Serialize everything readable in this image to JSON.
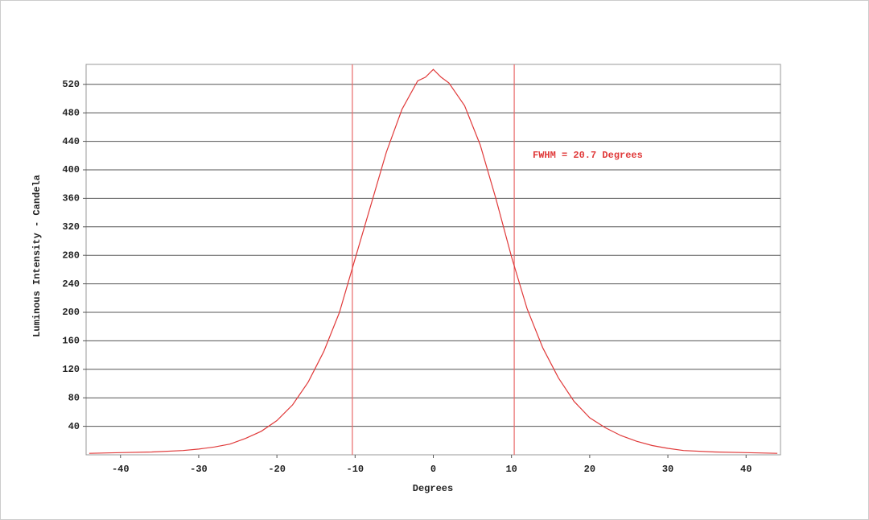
{
  "chart_data": {
    "type": "line",
    "x_label": "Degrees",
    "y_label": "Luminous Intensity - Candela",
    "annotation": "FWHM = 20.7 Degrees",
    "x": [
      -44,
      -40,
      -36,
      -32,
      -30,
      -28,
      -26,
      -24,
      -22,
      -20,
      -18,
      -16,
      -14,
      -12,
      -10,
      -8,
      -6,
      -4,
      -2,
      -1,
      0,
      1,
      2,
      4,
      6,
      8,
      10,
      12,
      14,
      16,
      18,
      20,
      22,
      24,
      26,
      28,
      30,
      32,
      36,
      40,
      44
    ],
    "values": [
      2,
      3,
      4,
      6,
      8,
      11,
      15,
      23,
      33,
      48,
      70,
      102,
      145,
      200,
      275,
      350,
      425,
      485,
      525,
      530,
      541,
      530,
      522,
      490,
      435,
      360,
      278,
      205,
      150,
      108,
      75,
      52,
      38,
      27,
      19,
      13,
      9,
      6,
      4,
      3,
      2
    ],
    "color": "#e03a3a",
    "vlines": [
      -10.35,
      10.35
    ],
    "vline_color": "#e86a6a",
    "xlim": [
      -44.4,
      44.4
    ],
    "ylim": [
      0,
      548
    ],
    "xticks": [
      -40,
      -30,
      -20,
      -10,
      0,
      10,
      20,
      30,
      40
    ],
    "yticks": [
      40,
      80,
      120,
      160,
      200,
      240,
      280,
      320,
      360,
      400,
      440,
      480,
      520
    ],
    "grid": true
  }
}
